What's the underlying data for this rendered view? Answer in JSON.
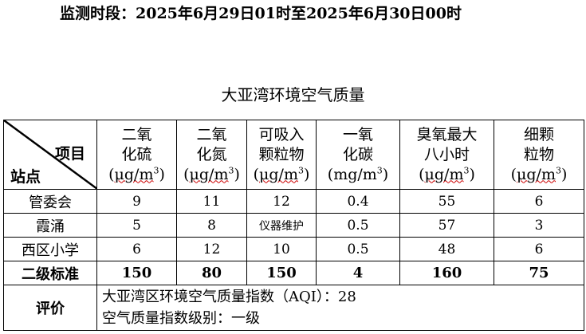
{
  "monitoring_period": "监测时段：2025年6月29日01时至2025年6月30日00时",
  "table_title": "大亚湾环境空气质量",
  "corner": {
    "item_label": "项目",
    "site_label": "站点"
  },
  "columns": [
    {
      "line1": "二氧",
      "line2": "化硫",
      "unit": "μg/m",
      "unit_sup": "3"
    },
    {
      "line1": "二氧",
      "line2": "化氮",
      "unit": "μg/m",
      "unit_sup": "3"
    },
    {
      "line1": "可吸入",
      "line2": "颗粒物",
      "unit": "μg/m",
      "unit_sup": "3"
    },
    {
      "line1": "一氧",
      "line2": "化碳",
      "unit": "mg/m",
      "unit_sup": "3"
    },
    {
      "line1": "臭氧最大",
      "line2": "八小时",
      "unit": "μg/m",
      "unit_sup": "3"
    },
    {
      "line1": "细颗",
      "line2": "粒物",
      "unit": "μg/m",
      "unit_sup": "3"
    }
  ],
  "rows": [
    {
      "site": "管委会",
      "values": [
        "9",
        "11",
        "12",
        "0.4",
        "55",
        "6"
      ]
    },
    {
      "site": "霞涌",
      "values": [
        "5",
        "8",
        "仪器维护",
        "0.5",
        "57",
        "3"
      ]
    },
    {
      "site": "西区小学",
      "values": [
        "6",
        "12",
        "10",
        "0.5",
        "48",
        "6"
      ]
    }
  ],
  "standard": {
    "label": "二级标准",
    "values": [
      "150",
      "80",
      "150",
      "4",
      "160",
      "75"
    ]
  },
  "evaluation": {
    "label": "评价",
    "aqi_line": "大亚湾区环境空气质量指数（AQI）：28",
    "level_line": "空气质量指数级别：一级"
  }
}
